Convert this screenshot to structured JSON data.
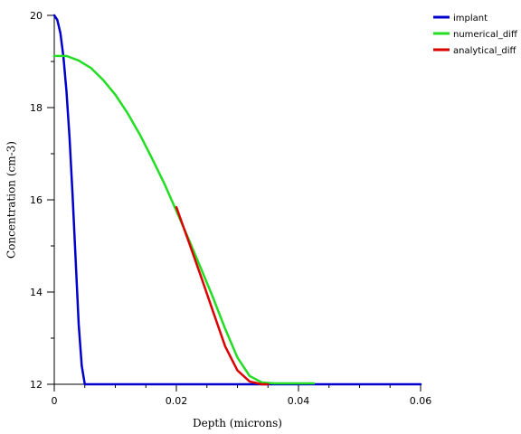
{
  "chart_data": {
    "type": "line",
    "title": "",
    "xlabel": "Depth (microns)",
    "ylabel": "Concentration (cm-3)",
    "xlim": [
      0,
      0.06
    ],
    "ylim": [
      12,
      20
    ],
    "x_ticks": [
      {
        "value": 0,
        "label": "0"
      },
      {
        "value": 0.02,
        "label": "0.02"
      },
      {
        "value": 0.04,
        "label": "0.04"
      },
      {
        "value": 0.06,
        "label": "0.06"
      }
    ],
    "y_ticks": [
      {
        "value": 12,
        "label": "12"
      },
      {
        "value": 14,
        "label": "14"
      },
      {
        "value": 16,
        "label": "16"
      },
      {
        "value": 18,
        "label": "18"
      },
      {
        "value": 20,
        "label": "20"
      }
    ],
    "x_minor_step": 0.005,
    "y_minor_step": 1,
    "grid": false,
    "legend_position": "top-right",
    "series": [
      {
        "name": "implant",
        "color": "#0000cc",
        "points": [
          [
            0,
            20
          ],
          [
            0.0005,
            19.9
          ],
          [
            0.001,
            19.62
          ],
          [
            0.0015,
            19.1
          ],
          [
            0.002,
            18.35
          ],
          [
            0.0025,
            17.35
          ],
          [
            0.003,
            16.1
          ],
          [
            0.0035,
            14.7
          ],
          [
            0.004,
            13.3
          ],
          [
            0.0045,
            12.4
          ],
          [
            0.005,
            12.0
          ],
          [
            0.01,
            12.0
          ],
          [
            0.02,
            12.0
          ],
          [
            0.03,
            12.0
          ],
          [
            0.04,
            12.0
          ],
          [
            0.05,
            12.0
          ],
          [
            0.06,
            12.0
          ]
        ]
      },
      {
        "name": "numerical_diff",
        "color": "#22dd22",
        "points": [
          [
            0,
            19.12
          ],
          [
            0.002,
            19.12
          ],
          [
            0.004,
            19.02
          ],
          [
            0.006,
            18.86
          ],
          [
            0.008,
            18.6
          ],
          [
            0.01,
            18.28
          ],
          [
            0.012,
            17.88
          ],
          [
            0.014,
            17.42
          ],
          [
            0.016,
            16.9
          ],
          [
            0.018,
            16.36
          ],
          [
            0.02,
            15.76
          ],
          [
            0.022,
            15.15
          ],
          [
            0.024,
            14.52
          ],
          [
            0.026,
            13.88
          ],
          [
            0.028,
            13.2
          ],
          [
            0.03,
            12.58
          ],
          [
            0.032,
            12.18
          ],
          [
            0.034,
            12.04
          ],
          [
            0.036,
            12.02
          ],
          [
            0.04,
            12.02
          ],
          [
            0.0425,
            12.02
          ]
        ]
      },
      {
        "name": "analytical_diff",
        "color": "#dd0000",
        "points": [
          [
            0.02,
            15.84
          ],
          [
            0.022,
            15.1
          ],
          [
            0.024,
            14.35
          ],
          [
            0.026,
            13.58
          ],
          [
            0.028,
            12.82
          ],
          [
            0.03,
            12.3
          ],
          [
            0.032,
            12.06
          ],
          [
            0.034,
            12.0
          ],
          [
            0.035,
            12.0
          ]
        ]
      }
    ]
  }
}
